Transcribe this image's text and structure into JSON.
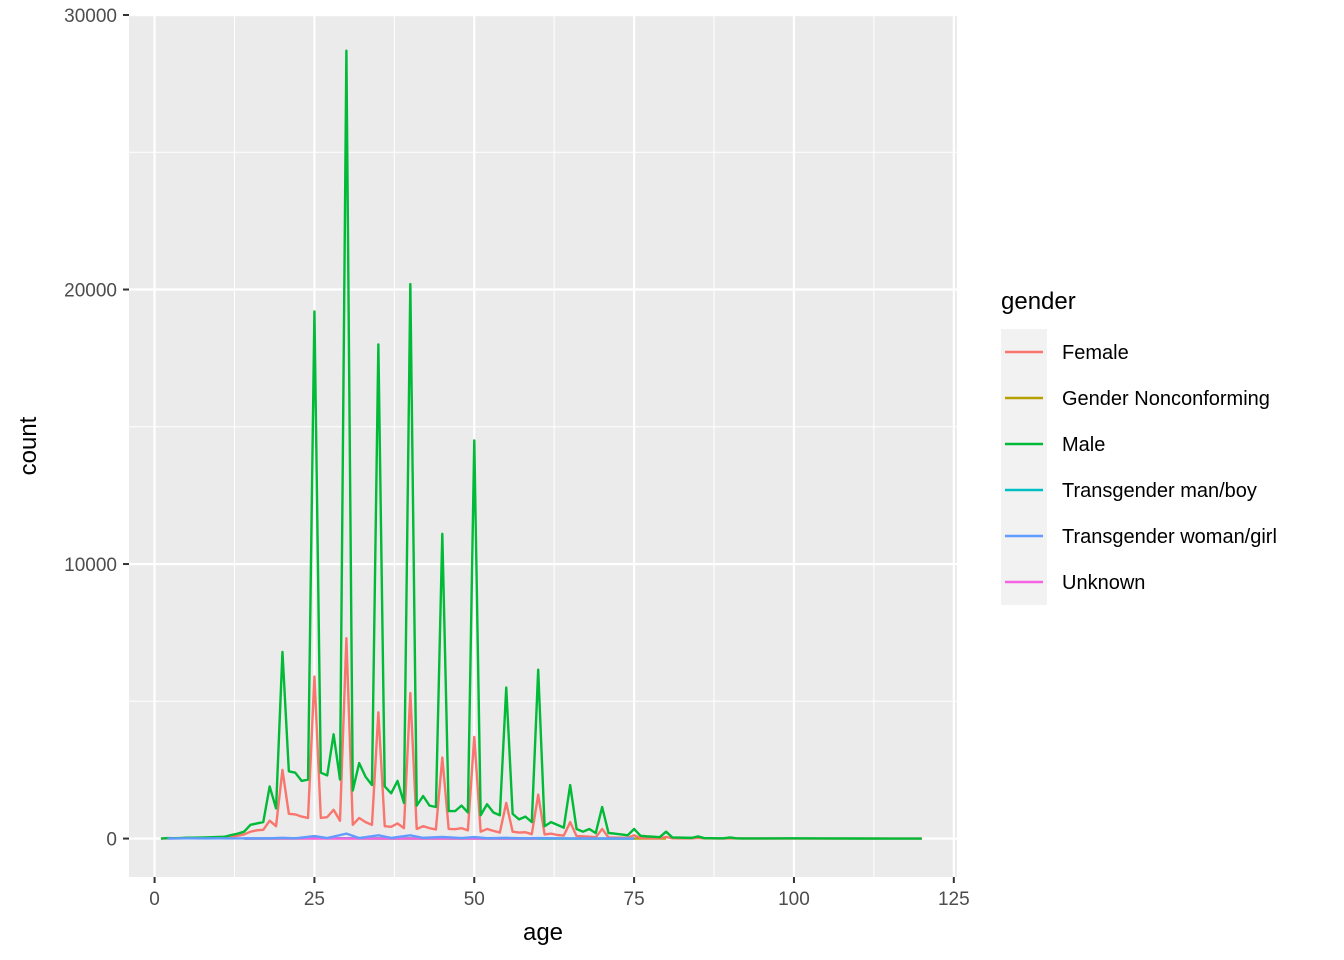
{
  "chart_data": {
    "type": "line",
    "xlabel": "age",
    "ylabel": "count",
    "xlim": [
      -4,
      125.5
    ],
    "ylim": [
      -1400,
      30000
    ],
    "x_ticks": [
      0,
      25,
      50,
      75,
      100,
      125
    ],
    "y_ticks": [
      0,
      10000,
      20000,
      30000
    ],
    "grid": true,
    "legend": {
      "title": "gender",
      "position": "right"
    },
    "series": [
      {
        "name": "Female",
        "color": "#F8766D",
        "points": [
          [
            1,
            0
          ],
          [
            2,
            5
          ],
          [
            3,
            5
          ],
          [
            4,
            10
          ],
          [
            5,
            10
          ],
          [
            6,
            15
          ],
          [
            7,
            20
          ],
          [
            8,
            25
          ],
          [
            9,
            25
          ],
          [
            10,
            35
          ],
          [
            11,
            45
          ],
          [
            12,
            70
          ],
          [
            13,
            100
          ],
          [
            14,
            150
          ],
          [
            15,
            250
          ],
          [
            16,
            300
          ],
          [
            17,
            320
          ],
          [
            18,
            650
          ],
          [
            19,
            450
          ],
          [
            20,
            2500
          ],
          [
            21,
            900
          ],
          [
            22,
            880
          ],
          [
            23,
            800
          ],
          [
            24,
            750
          ],
          [
            25,
            5900
          ],
          [
            26,
            750
          ],
          [
            27,
            780
          ],
          [
            28,
            1050
          ],
          [
            29,
            650
          ],
          [
            30,
            7300
          ],
          [
            31,
            500
          ],
          [
            32,
            750
          ],
          [
            33,
            600
          ],
          [
            34,
            500
          ],
          [
            35,
            4600
          ],
          [
            36,
            450
          ],
          [
            37,
            430
          ],
          [
            38,
            550
          ],
          [
            39,
            380
          ],
          [
            40,
            5300
          ],
          [
            41,
            350
          ],
          [
            42,
            450
          ],
          [
            43,
            380
          ],
          [
            44,
            330
          ],
          [
            45,
            2950
          ],
          [
            46,
            350
          ],
          [
            47,
            340
          ],
          [
            48,
            380
          ],
          [
            49,
            300
          ],
          [
            50,
            3700
          ],
          [
            51,
            250
          ],
          [
            52,
            350
          ],
          [
            53,
            280
          ],
          [
            54,
            220
          ],
          [
            55,
            1300
          ],
          [
            56,
            250
          ],
          [
            57,
            220
          ],
          [
            58,
            230
          ],
          [
            59,
            160
          ],
          [
            60,
            1600
          ],
          [
            61,
            150
          ],
          [
            62,
            180
          ],
          [
            63,
            130
          ],
          [
            64,
            110
          ],
          [
            65,
            600
          ],
          [
            66,
            90
          ],
          [
            67,
            80
          ],
          [
            68,
            70
          ],
          [
            69,
            50
          ],
          [
            70,
            350
          ],
          [
            71,
            40
          ],
          [
            72,
            35
          ],
          [
            73,
            30
          ],
          [
            74,
            25
          ],
          [
            75,
            120
          ],
          [
            76,
            20
          ],
          [
            77,
            15
          ],
          [
            78,
            12
          ],
          [
            79,
            10
          ],
          [
            80,
            60
          ],
          [
            81,
            8
          ],
          [
            82,
            6
          ],
          [
            83,
            5
          ],
          [
            84,
            4
          ],
          [
            85,
            25
          ],
          [
            86,
            3
          ],
          [
            87,
            3
          ],
          [
            88,
            2
          ],
          [
            89,
            2
          ],
          [
            90,
            8
          ],
          [
            92,
            2
          ],
          [
            95,
            2
          ],
          [
            100,
            1
          ],
          [
            105,
            0
          ],
          [
            110,
            0
          ],
          [
            115,
            0
          ],
          [
            120,
            0
          ]
        ]
      },
      {
        "name": "Gender Nonconforming",
        "color": "#B79F00",
        "points": [
          [
            14,
            0
          ],
          [
            20,
            2
          ],
          [
            25,
            3
          ],
          [
            30,
            4
          ],
          [
            35,
            2
          ],
          [
            40,
            2
          ],
          [
            45,
            1
          ],
          [
            50,
            1
          ],
          [
            55,
            0
          ],
          [
            60,
            0
          ],
          [
            70,
            0
          ],
          [
            80,
            0
          ]
        ]
      },
      {
        "name": "Male",
        "color": "#00BA38",
        "points": [
          [
            1,
            0
          ],
          [
            2,
            20
          ],
          [
            3,
            15
          ],
          [
            4,
            20
          ],
          [
            5,
            30
          ],
          [
            6,
            30
          ],
          [
            7,
            35
          ],
          [
            8,
            40
          ],
          [
            9,
            50
          ],
          [
            10,
            60
          ],
          [
            11,
            70
          ],
          [
            12,
            130
          ],
          [
            13,
            180
          ],
          [
            14,
            250
          ],
          [
            15,
            500
          ],
          [
            16,
            550
          ],
          [
            17,
            600
          ],
          [
            18,
            1900
          ],
          [
            19,
            1100
          ],
          [
            20,
            6800
          ],
          [
            21,
            2450
          ],
          [
            22,
            2400
          ],
          [
            23,
            2100
          ],
          [
            24,
            2150
          ],
          [
            25,
            19200
          ],
          [
            26,
            2400
          ],
          [
            27,
            2300
          ],
          [
            28,
            3800
          ],
          [
            29,
            2150
          ],
          [
            30,
            28700
          ],
          [
            31,
            1750
          ],
          [
            32,
            2750
          ],
          [
            33,
            2250
          ],
          [
            34,
            1950
          ],
          [
            35,
            18000
          ],
          [
            36,
            1900
          ],
          [
            37,
            1650
          ],
          [
            38,
            2100
          ],
          [
            39,
            1300
          ],
          [
            40,
            20200
          ],
          [
            41,
            1200
          ],
          [
            42,
            1550
          ],
          [
            43,
            1200
          ],
          [
            44,
            1150
          ],
          [
            45,
            11100
          ],
          [
            46,
            1000
          ],
          [
            47,
            1000
          ],
          [
            48,
            1200
          ],
          [
            49,
            950
          ],
          [
            50,
            14500
          ],
          [
            51,
            850
          ],
          [
            52,
            1250
          ],
          [
            53,
            950
          ],
          [
            54,
            850
          ],
          [
            55,
            5500
          ],
          [
            56,
            900
          ],
          [
            57,
            700
          ],
          [
            58,
            800
          ],
          [
            59,
            600
          ],
          [
            60,
            6150
          ],
          [
            61,
            450
          ],
          [
            62,
            600
          ],
          [
            63,
            500
          ],
          [
            64,
            400
          ],
          [
            65,
            1950
          ],
          [
            66,
            350
          ],
          [
            67,
            250
          ],
          [
            68,
            350
          ],
          [
            69,
            200
          ],
          [
            70,
            1150
          ],
          [
            71,
            200
          ],
          [
            72,
            180
          ],
          [
            73,
            150
          ],
          [
            74,
            120
          ],
          [
            75,
            350
          ],
          [
            76,
            100
          ],
          [
            77,
            80
          ],
          [
            78,
            70
          ],
          [
            79,
            50
          ],
          [
            80,
            250
          ],
          [
            81,
            40
          ],
          [
            82,
            35
          ],
          [
            83,
            30
          ],
          [
            84,
            25
          ],
          [
            85,
            80
          ],
          [
            86,
            15
          ],
          [
            87,
            15
          ],
          [
            88,
            10
          ],
          [
            89,
            10
          ],
          [
            90,
            40
          ],
          [
            91,
            8
          ],
          [
            92,
            6
          ],
          [
            93,
            5
          ],
          [
            95,
            5
          ],
          [
            100,
            10
          ],
          [
            105,
            3
          ],
          [
            110,
            2
          ],
          [
            115,
            1
          ],
          [
            120,
            0
          ]
        ]
      },
      {
        "name": "Transgender man/boy",
        "color": "#00BFC4",
        "points": [
          [
            14,
            0
          ],
          [
            18,
            3
          ],
          [
            20,
            8
          ],
          [
            25,
            10
          ],
          [
            30,
            12
          ],
          [
            35,
            6
          ],
          [
            40,
            5
          ],
          [
            45,
            3
          ],
          [
            50,
            3
          ],
          [
            55,
            2
          ],
          [
            60,
            1
          ],
          [
            70,
            0
          ],
          [
            75,
            0
          ]
        ]
      },
      {
        "name": "Transgender woman/girl",
        "color": "#619CFF",
        "points": [
          [
            2,
            0
          ],
          [
            5,
            8
          ],
          [
            8,
            5
          ],
          [
            10,
            10
          ],
          [
            12,
            5
          ],
          [
            15,
            8
          ],
          [
            18,
            10
          ],
          [
            20,
            25
          ],
          [
            22,
            10
          ],
          [
            25,
            90
          ],
          [
            27,
            20
          ],
          [
            30,
            180
          ],
          [
            32,
            20
          ],
          [
            35,
            120
          ],
          [
            37,
            25
          ],
          [
            40,
            120
          ],
          [
            42,
            25
          ],
          [
            45,
            60
          ],
          [
            48,
            20
          ],
          [
            50,
            55
          ],
          [
            52,
            15
          ],
          [
            55,
            25
          ],
          [
            58,
            10
          ],
          [
            60,
            20
          ],
          [
            65,
            5
          ],
          [
            70,
            2
          ],
          [
            75,
            0
          ]
        ]
      },
      {
        "name": "Unknown",
        "color": "#F564E3",
        "points": [
          [
            14,
            0
          ],
          [
            20,
            1
          ],
          [
            25,
            2
          ],
          [
            30,
            2
          ],
          [
            35,
            1
          ],
          [
            40,
            1
          ],
          [
            50,
            1
          ],
          [
            60,
            0
          ]
        ]
      }
    ]
  }
}
